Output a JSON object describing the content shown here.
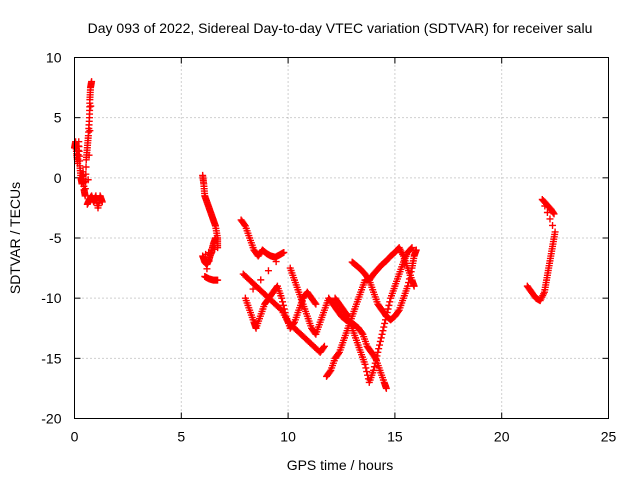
{
  "chart_data": {
    "type": "scatter",
    "title": "Day 093 of 2022, Sidereal Day-to-day VTEC variation (SDTVAR) for receiver salu",
    "xlabel": "GPS time / hours",
    "ylabel": "SDTVAR / TECUs",
    "xlim": [
      0,
      25
    ],
    "ylim": [
      -20,
      10
    ],
    "x_ticks": [
      0,
      5,
      10,
      15,
      20,
      25
    ],
    "y_ticks": [
      -20,
      -15,
      -10,
      -5,
      0,
      5,
      10
    ],
    "x_tick_labels": [
      "0",
      "5",
      "10",
      "15",
      "20",
      "25"
    ],
    "y_tick_labels": [
      "-20",
      "-15",
      "-10",
      "-5",
      "0",
      "5",
      "10"
    ],
    "grid": true,
    "marker": "+",
    "color": "#ff0000",
    "series": [
      {
        "points": [
          [
            0.0,
            2.5
          ],
          [
            0.05,
            3.0
          ],
          [
            0.1,
            2.0
          ],
          [
            0.15,
            1.2
          ],
          [
            0.2,
            3.0
          ],
          [
            0.25,
            1.0
          ],
          [
            0.3,
            0.0
          ],
          [
            0.35,
            -0.5
          ],
          [
            0.4,
            0.5
          ],
          [
            0.45,
            -1.0
          ],
          [
            0.5,
            -1.5
          ],
          [
            0.55,
            1.5
          ],
          [
            0.6,
            2.5
          ],
          [
            0.65,
            3.5
          ],
          [
            0.7,
            5.0
          ],
          [
            0.72,
            6.5
          ],
          [
            0.75,
            7.5
          ],
          [
            0.8,
            8.0
          ],
          [
            0.6,
            -2.2
          ],
          [
            0.7,
            -1.8
          ],
          [
            0.8,
            -1.5
          ],
          [
            0.9,
            -2.0
          ],
          [
            1.0,
            -1.5
          ],
          [
            1.1,
            -2.5
          ],
          [
            1.2,
            -1.5
          ],
          [
            1.3,
            -2.0
          ]
        ]
      },
      {
        "points": [
          [
            6.0,
            0.2
          ],
          [
            6.05,
            -0.5
          ],
          [
            6.1,
            -1.5
          ],
          [
            6.2,
            -2.0
          ],
          [
            6.3,
            -2.5
          ],
          [
            6.4,
            -3.0
          ],
          [
            6.5,
            -3.5
          ],
          [
            6.6,
            -4.0
          ],
          [
            6.7,
            -5.0
          ],
          [
            6.7,
            -5.8
          ],
          [
            6.0,
            -6.5
          ],
          [
            6.1,
            -7.0
          ],
          [
            6.2,
            -7.2
          ],
          [
            6.3,
            -6.8
          ],
          [
            6.4,
            -6.2
          ],
          [
            6.5,
            -5.5
          ],
          [
            6.6,
            -5.0
          ],
          [
            6.1,
            -8.2
          ],
          [
            6.3,
            -8.4
          ],
          [
            6.5,
            -8.5
          ],
          [
            6.7,
            -8.5
          ]
        ]
      },
      {
        "points": [
          [
            7.8,
            -3.5
          ],
          [
            8.0,
            -4.0
          ],
          [
            8.2,
            -5.0
          ],
          [
            8.4,
            -6.0
          ],
          [
            8.6,
            -6.5
          ],
          [
            8.8,
            -6.0
          ],
          [
            9.0,
            -6.3
          ],
          [
            9.2,
            -6.5
          ],
          [
            9.4,
            -6.6
          ],
          [
            9.6,
            -6.4
          ],
          [
            9.8,
            -6.2
          ],
          [
            8.0,
            -10.0
          ],
          [
            8.2,
            -11.0
          ],
          [
            8.4,
            -12.0
          ],
          [
            8.5,
            -12.5
          ],
          [
            8.7,
            -11.5
          ],
          [
            8.9,
            -10.5
          ],
          [
            9.1,
            -10.0
          ],
          [
            9.3,
            -9.5
          ],
          [
            9.5,
            -9.0
          ],
          [
            9.7,
            -10.0
          ],
          [
            9.9,
            -11.5
          ],
          [
            10.1,
            -12.5
          ],
          [
            10.3,
            -12.0
          ],
          [
            10.5,
            -11.0
          ],
          [
            10.7,
            -10.0
          ],
          [
            10.9,
            -9.5
          ],
          [
            11.1,
            -10.0
          ],
          [
            11.3,
            -10.5
          ]
        ]
      },
      {
        "points": [
          [
            7.9,
            -8.0
          ],
          [
            8.2,
            -8.5
          ],
          [
            8.5,
            -9.0
          ],
          [
            8.8,
            -9.5
          ],
          [
            9.1,
            -10.0
          ],
          [
            9.4,
            -10.5
          ],
          [
            9.7,
            -11.0
          ],
          [
            10.0,
            -12.0
          ],
          [
            10.3,
            -12.5
          ],
          [
            10.6,
            -13.0
          ],
          [
            10.9,
            -13.5
          ],
          [
            11.2,
            -14.0
          ],
          [
            11.5,
            -14.5
          ],
          [
            11.7,
            -14.0
          ]
        ]
      },
      {
        "points": [
          [
            10.1,
            -7.5
          ],
          [
            10.3,
            -8.5
          ],
          [
            10.5,
            -9.5
          ],
          [
            10.7,
            -10.5
          ],
          [
            10.9,
            -11.5
          ],
          [
            11.1,
            -12.5
          ],
          [
            11.3,
            -13.0
          ],
          [
            11.5,
            -12.0
          ],
          [
            11.7,
            -11.0
          ],
          [
            11.9,
            -10.0
          ],
          [
            12.1,
            -10.5
          ],
          [
            12.3,
            -11.0
          ],
          [
            12.5,
            -11.5
          ],
          [
            12.7,
            -11.8
          ],
          [
            12.9,
            -12.0
          ],
          [
            13.1,
            -12.2
          ],
          [
            13.3,
            -12.5
          ],
          [
            13.5,
            -13.0
          ],
          [
            13.7,
            -14.0
          ],
          [
            13.9,
            -14.5
          ],
          [
            14.1,
            -15.0
          ],
          [
            14.3,
            -16.0
          ],
          [
            14.5,
            -17.0
          ],
          [
            14.6,
            -17.5
          ]
        ]
      },
      {
        "points": [
          [
            11.8,
            -16.5
          ],
          [
            12.0,
            -16.0
          ],
          [
            12.2,
            -15.0
          ],
          [
            12.4,
            -14.5
          ],
          [
            12.6,
            -13.5
          ],
          [
            12.8,
            -12.5
          ],
          [
            13.0,
            -11.5
          ],
          [
            13.2,
            -10.5
          ],
          [
            13.4,
            -9.5
          ],
          [
            13.6,
            -8.5
          ],
          [
            13.8,
            -8.5
          ],
          [
            14.0,
            -9.5
          ],
          [
            14.2,
            -10.5
          ],
          [
            14.4,
            -11.0
          ],
          [
            14.6,
            -11.5
          ],
          [
            14.8,
            -11.8
          ],
          [
            15.0,
            -11.5
          ],
          [
            15.2,
            -11.0
          ],
          [
            15.4,
            -10.0
          ],
          [
            15.6,
            -9.0
          ],
          [
            15.8,
            -7.5
          ],
          [
            15.9,
            -6.5
          ],
          [
            16.0,
            -6.0
          ]
        ]
      },
      {
        "points": [
          [
            12.2,
            -10.0
          ],
          [
            12.4,
            -10.5
          ],
          [
            12.6,
            -11.0
          ],
          [
            12.8,
            -11.5
          ],
          [
            13.0,
            -12.5
          ],
          [
            13.2,
            -13.5
          ],
          [
            13.4,
            -14.5
          ],
          [
            13.6,
            -15.5
          ],
          [
            13.8,
            -17.0
          ],
          [
            14.0,
            -16.0
          ],
          [
            14.2,
            -14.5
          ],
          [
            14.4,
            -13.0
          ],
          [
            14.6,
            -11.5
          ],
          [
            14.8,
            -10.0
          ],
          [
            15.0,
            -9.0
          ],
          [
            15.2,
            -8.0
          ],
          [
            15.4,
            -7.0
          ],
          [
            15.6,
            -6.2
          ],
          [
            15.8,
            -5.8
          ]
        ]
      },
      {
        "points": [
          [
            13.0,
            -7.0
          ],
          [
            13.2,
            -7.3
          ],
          [
            13.4,
            -7.6
          ],
          [
            13.6,
            -8.0
          ],
          [
            13.8,
            -8.5
          ],
          [
            14.0,
            -8.0
          ],
          [
            14.2,
            -7.6
          ],
          [
            14.4,
            -7.2
          ],
          [
            14.6,
            -6.9
          ],
          [
            14.8,
            -6.5
          ],
          [
            15.0,
            -6.2
          ],
          [
            15.2,
            -5.8
          ],
          [
            15.4,
            -6.5
          ],
          [
            15.6,
            -7.5
          ],
          [
            15.8,
            -8.5
          ],
          [
            15.9,
            -9.0
          ]
        ]
      },
      {
        "points": [
          [
            21.2,
            -9.0
          ],
          [
            21.4,
            -9.5
          ],
          [
            21.6,
            -10.0
          ],
          [
            21.8,
            -10.2
          ],
          [
            22.0,
            -9.5
          ],
          [
            22.1,
            -8.5
          ],
          [
            22.2,
            -7.5
          ],
          [
            22.3,
            -6.5
          ],
          [
            22.4,
            -5.5
          ],
          [
            22.5,
            -4.5
          ],
          [
            21.9,
            -1.8
          ],
          [
            22.1,
            -2.2
          ],
          [
            22.3,
            -2.6
          ],
          [
            22.45,
            -3.0
          ]
        ]
      }
    ]
  }
}
